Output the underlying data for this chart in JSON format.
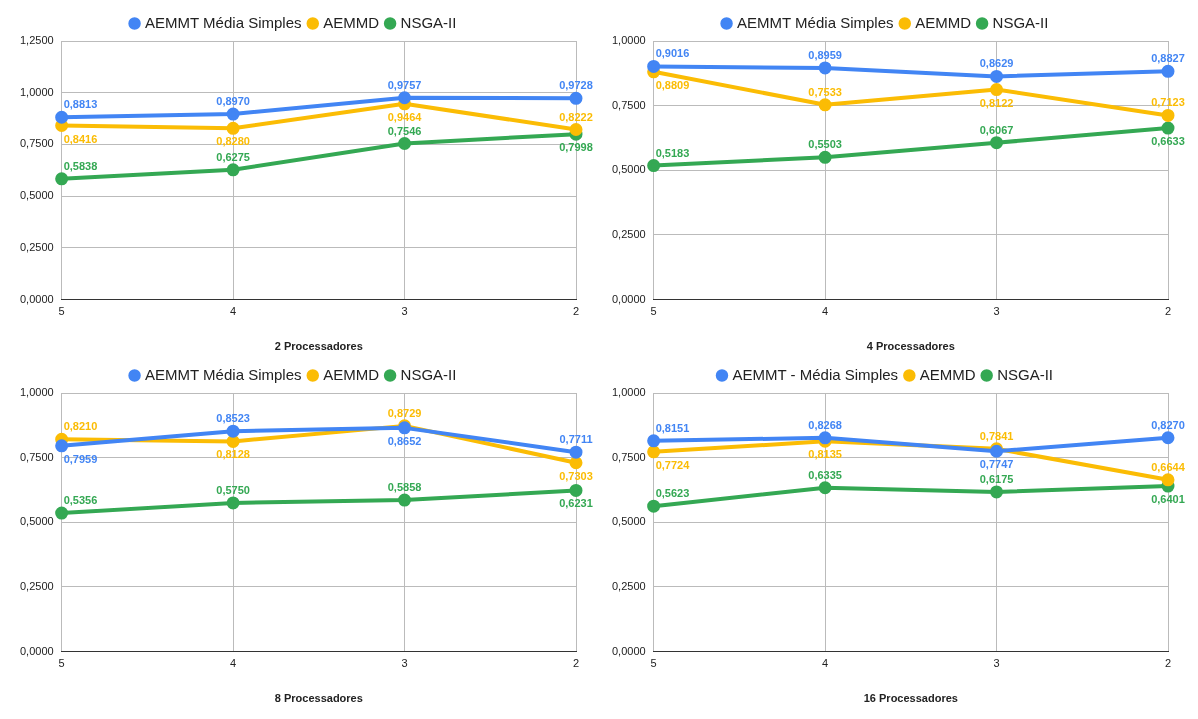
{
  "chart_data": [
    {
      "type": "line",
      "xlabel": "2 Processadores",
      "categories": [
        "5",
        "4",
        "3",
        "2"
      ],
      "ylim": [
        0,
        1.25
      ],
      "yticks": [
        {
          "value": 0,
          "label": "0,0000"
        },
        {
          "value": 0.25,
          "label": "0,2500"
        },
        {
          "value": 0.5,
          "label": "0,5000"
        },
        {
          "value": 0.75,
          "label": "0,7500"
        },
        {
          "value": 1,
          "label": "1,0000"
        },
        {
          "value": 1.25,
          "label": "1,2500"
        }
      ],
      "grid": true,
      "legend": "top",
      "marker": "circle",
      "series": [
        {
          "name": "AEMMT Média Simples",
          "color": "#4285f4",
          "values": [
            0.8813,
            0.897,
            0.9757,
            0.9728
          ],
          "value_labels": [
            "0,8813",
            "0,8970",
            "0,9757",
            "0,9728"
          ]
        },
        {
          "name": "AEMMD",
          "color": "#fbbc04",
          "values": [
            0.8416,
            0.828,
            0.9464,
            0.8222
          ],
          "value_labels": [
            "0,8416",
            "0,8280",
            "0,9464",
            "0,8222"
          ]
        },
        {
          "name": "NSGA-II",
          "color": "#34a853",
          "values": [
            0.5838,
            0.6275,
            0.7546,
            0.7998
          ],
          "value_labels": [
            "0,5838",
            "0,6275",
            "0,7546",
            "0,7998"
          ]
        }
      ]
    },
    {
      "type": "line",
      "xlabel": "4 Processadores",
      "categories": [
        "5",
        "4",
        "3",
        "2"
      ],
      "ylim": [
        0,
        1
      ],
      "yticks": [
        {
          "value": 0,
          "label": "0,0000"
        },
        {
          "value": 0.25,
          "label": "0,2500"
        },
        {
          "value": 0.5,
          "label": "0,5000"
        },
        {
          "value": 0.75,
          "label": "0,7500"
        },
        {
          "value": 1,
          "label": "1,0000"
        }
      ],
      "grid": true,
      "legend": "top",
      "marker": "circle",
      "series": [
        {
          "name": "AEMMT Média Simples",
          "color": "#4285f4",
          "values": [
            0.9016,
            0.8959,
            0.8629,
            0.8827
          ],
          "value_labels": [
            "0,9016",
            "0,8959",
            "0,8629",
            "0,8827"
          ]
        },
        {
          "name": "AEMMD",
          "color": "#fbbc04",
          "values": [
            0.8809,
            0.7533,
            0.8122,
            0.7123
          ],
          "value_labels": [
            "0,8809",
            "0,7533",
            "0,8122",
            "0,7123"
          ]
        },
        {
          "name": "NSGA-II",
          "color": "#34a853",
          "values": [
            0.5183,
            0.5503,
            0.6067,
            0.6633
          ],
          "value_labels": [
            "0,5183",
            "0,5503",
            "0,6067",
            "0,6633"
          ]
        }
      ]
    },
    {
      "type": "line",
      "xlabel": "8 Processadores",
      "categories": [
        "5",
        "4",
        "3",
        "2"
      ],
      "ylim": [
        0,
        1
      ],
      "yticks": [
        {
          "value": 0,
          "label": "0,0000"
        },
        {
          "value": 0.25,
          "label": "0,2500"
        },
        {
          "value": 0.5,
          "label": "0,5000"
        },
        {
          "value": 0.75,
          "label": "0,7500"
        },
        {
          "value": 1,
          "label": "1,0000"
        }
      ],
      "grid": true,
      "legend": "top",
      "marker": "circle",
      "series": [
        {
          "name": "AEMMT Média Simples",
          "color": "#4285f4",
          "values": [
            0.7959,
            0.8523,
            0.8652,
            0.7711
          ],
          "value_labels": [
            "0,7959",
            "0,8523",
            "0,8652",
            "0,7711"
          ]
        },
        {
          "name": "AEMMD",
          "color": "#fbbc04",
          "values": [
            0.821,
            0.8128,
            0.8729,
            0.7303
          ],
          "value_labels": [
            "0,8210",
            "0,8128",
            "0,8729",
            "0,7303"
          ]
        },
        {
          "name": "NSGA-II",
          "color": "#34a853",
          "values": [
            0.5356,
            0.575,
            0.5858,
            0.6231
          ],
          "value_labels": [
            "0,5356",
            "0,5750",
            "0,5858",
            "0,6231"
          ]
        }
      ]
    },
    {
      "type": "line",
      "xlabel": "16 Processadores",
      "categories": [
        "5",
        "4",
        "3",
        "2"
      ],
      "ylim": [
        0,
        1
      ],
      "yticks": [
        {
          "value": 0,
          "label": "0,0000"
        },
        {
          "value": 0.25,
          "label": "0,2500"
        },
        {
          "value": 0.5,
          "label": "0,5000"
        },
        {
          "value": 0.75,
          "label": "0,7500"
        },
        {
          "value": 1,
          "label": "1,0000"
        }
      ],
      "grid": true,
      "legend": "top",
      "marker": "circle",
      "series": [
        {
          "name": "AEMMT - Média Simples",
          "color": "#4285f4",
          "values": [
            0.8151,
            0.8268,
            0.7747,
            0.827
          ],
          "value_labels": [
            "0,8151",
            "0,8268",
            "0,7747",
            "0,8270"
          ]
        },
        {
          "name": "AEMMD",
          "color": "#fbbc04",
          "values": [
            0.7724,
            0.8135,
            0.7841,
            0.6644
          ],
          "value_labels": [
            "0,7724",
            "0,8135",
            "0,7841",
            "0,6644"
          ]
        },
        {
          "name": "NSGA-II",
          "color": "#34a853",
          "values": [
            0.5623,
            0.6335,
            0.6175,
            0.6401
          ],
          "value_labels": [
            "0,5623",
            "0,6335",
            "0,6175",
            "0,6401"
          ]
        }
      ]
    }
  ]
}
